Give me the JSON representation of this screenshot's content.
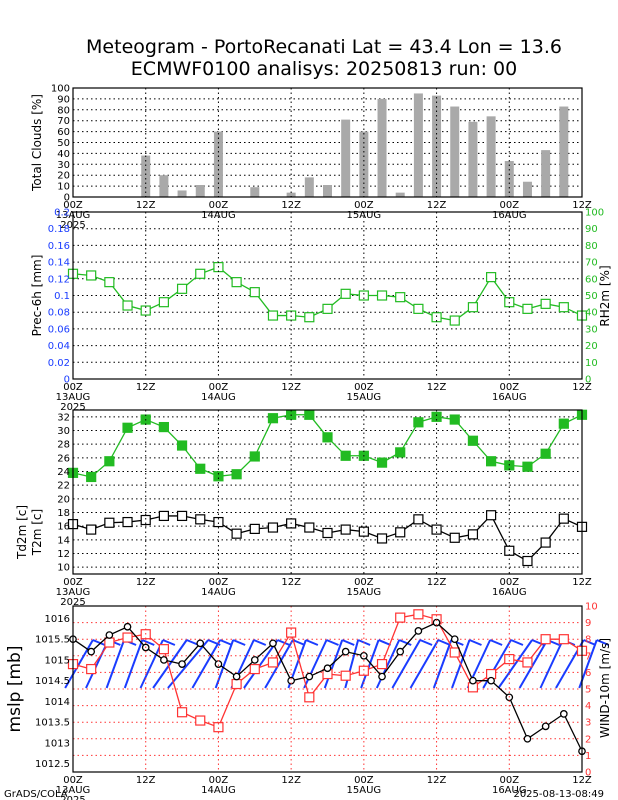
{
  "header": {
    "title_line1": "Meteogram - PortoRecanati Lat = 43.4 Lon = 13.6",
    "title_line2": "ECMWF0100 analisys: 20250813 run: 00"
  },
  "footer": {
    "left": "GrADS/COLA",
    "right": "2025-08-13-08:49"
  },
  "time_axis": {
    "ticks": [
      "00Z",
      "12Z",
      "00Z",
      "12Z",
      "00Z",
      "12Z",
      "00Z",
      "12Z"
    ],
    "dates": [
      {
        "label": "13AUG",
        "year": "2025",
        "at": 0
      },
      {
        "label": "14AUG",
        "at": 24
      },
      {
        "label": "15AUG",
        "at": 48
      },
      {
        "label": "16AUG",
        "at": 72
      }
    ]
  },
  "colors": {
    "green": "#22bb22",
    "blue": "#1a3cff",
    "red": "#ff3333",
    "gray": "#a9a9a9",
    "wind": "#1a3cff"
  },
  "chart_data": [
    {
      "type": "bar",
      "panel": "clouds",
      "ylabel": "Total Clouds [%]",
      "ylim": [
        0,
        100
      ],
      "yticks": [
        0,
        10,
        20,
        30,
        40,
        50,
        60,
        70,
        80,
        90,
        100
      ],
      "hours": [
        0,
        3,
        6,
        9,
        12,
        15,
        18,
        21,
        24,
        27,
        30,
        33,
        36,
        39,
        42,
        45,
        48,
        51,
        54,
        57,
        60,
        63,
        66,
        69,
        72,
        75,
        78,
        81,
        84
      ],
      "values": [
        0,
        0,
        0,
        0,
        38,
        20,
        6,
        11,
        60,
        0,
        9,
        0,
        4,
        18,
        11,
        71,
        60,
        90,
        4,
        95,
        93,
        83,
        69,
        74,
        33,
        14,
        43,
        83,
        0
      ]
    },
    {
      "type": "line",
      "panel": "precip_rh",
      "ylabel": "Prec-6h [mm]",
      "ylabel_right": "RH2m [%]",
      "ylim": [
        0,
        0.2
      ],
      "yticks": [
        "0",
        "0.02",
        "0.04",
        "0.06",
        "0.08",
        "0.1",
        "0.12",
        "0.14",
        "0.16",
        "0.18",
        "0.2"
      ],
      "ylim_right": [
        0,
        100
      ],
      "yticks_right": [
        0,
        10,
        20,
        30,
        40,
        50,
        60,
        70,
        80,
        90,
        100
      ],
      "series": [
        {
          "name": "RH2m",
          "hours": [
            0,
            3,
            6,
            9,
            12,
            15,
            18,
            21,
            24,
            27,
            30,
            33,
            36,
            39,
            42,
            45,
            48,
            51,
            54,
            57,
            60,
            63,
            66,
            69,
            72,
            75,
            78,
            81,
            84
          ],
          "values": [
            63,
            62,
            58,
            44,
            41,
            46,
            54,
            63,
            67,
            58,
            52,
            38,
            38,
            37,
            42,
            51,
            50,
            50,
            49,
            42,
            37,
            35,
            43,
            61,
            46,
            42,
            45,
            43,
            38
          ]
        }
      ]
    },
    {
      "type": "line",
      "panel": "temperature",
      "ylabel": "Td2m [c]",
      "ylabel2": "T2m [c]",
      "ylim": [
        9,
        33
      ],
      "yticks": [
        10,
        12,
        14,
        16,
        18,
        20,
        22,
        24,
        26,
        28,
        30,
        32
      ],
      "series": [
        {
          "name": "T2m",
          "hours": [
            0,
            3,
            6,
            9,
            12,
            15,
            18,
            21,
            24,
            27,
            30,
            33,
            36,
            39,
            42,
            45,
            48,
            51,
            54,
            57,
            60,
            63,
            66,
            69,
            72,
            75,
            78,
            81,
            84
          ],
          "values": [
            23.8,
            23.2,
            25.5,
            30.4,
            31.6,
            30.5,
            27.8,
            24.4,
            23.3,
            23.6,
            26.2,
            31.8,
            32.3,
            32.3,
            29.0,
            26.3,
            26.3,
            25.3,
            26.8,
            31.2,
            32.0,
            31.6,
            28.5,
            25.5,
            24.9,
            24.7,
            26.6,
            31.0,
            32.3
          ]
        },
        {
          "name": "Td2m",
          "hours": [
            0,
            3,
            6,
            9,
            12,
            15,
            18,
            21,
            24,
            27,
            30,
            33,
            36,
            39,
            42,
            45,
            48,
            51,
            54,
            57,
            60,
            63,
            66,
            69,
            72,
            75,
            78,
            81,
            84
          ],
          "values": [
            16.3,
            15.5,
            16.5,
            16.6,
            16.9,
            17.5,
            17.5,
            17.0,
            16.6,
            14.9,
            15.6,
            15.8,
            16.4,
            15.8,
            15.0,
            15.5,
            15.2,
            14.2,
            15.1,
            17.0,
            15.5,
            14.3,
            14.8,
            17.6,
            12.4,
            10.9,
            13.6,
            17.1,
            15.9
          ]
        }
      ]
    },
    {
      "type": "line",
      "panel": "mslp_wind",
      "ylabel": "mslp [mb]",
      "ylabel_right": "WIND-10m [m/s]",
      "ylim": [
        1012.3,
        1016.3
      ],
      "yticks": [
        "1012.5",
        "1013",
        "1013.5",
        "1014",
        "1014.5",
        "1015",
        "1015.5",
        "1016"
      ],
      "ylim_right": [
        0,
        10
      ],
      "yticks_right": [
        0,
        1,
        2,
        3,
        4,
        5,
        6,
        7,
        8,
        9,
        10
      ],
      "series": [
        {
          "name": "mslp",
          "hours": [
            0,
            3,
            6,
            9,
            12,
            15,
            18,
            21,
            24,
            27,
            30,
            33,
            36,
            39,
            42,
            45,
            48,
            51,
            54,
            57,
            60,
            63,
            66,
            69,
            72,
            75,
            78,
            81,
            84
          ],
          "values": [
            1015.5,
            1015.2,
            1015.6,
            1015.8,
            1015.3,
            1015.0,
            1014.9,
            1015.4,
            1014.9,
            1014.6,
            1015.0,
            1015.4,
            1014.5,
            1014.6,
            1014.8,
            1015.2,
            1015.1,
            1014.6,
            1015.2,
            1015.7,
            1015.9,
            1015.5,
            1014.5,
            1014.5,
            1014.1,
            1013.1,
            1013.4,
            1013.7,
            1012.8
          ]
        },
        {
          "name": "WIND-10m",
          "hours": [
            0,
            3,
            6,
            9,
            12,
            15,
            18,
            21,
            24,
            27,
            30,
            33,
            36,
            39,
            42,
            45,
            48,
            51,
            54,
            57,
            60,
            63,
            66,
            69,
            72,
            75,
            78,
            81,
            84
          ],
          "values": [
            6.5,
            6.2,
            7.8,
            8.1,
            8.3,
            7.4,
            3.6,
            3.1,
            2.7,
            5.3,
            6.2,
            6.6,
            8.4,
            4.5,
            5.9,
            5.8,
            6.1,
            6.5,
            9.3,
            9.5,
            9.2,
            7.2,
            5.1,
            5.9,
            6.8,
            6.6,
            8.0,
            8.0,
            7.3
          ]
        }
      ]
    }
  ]
}
